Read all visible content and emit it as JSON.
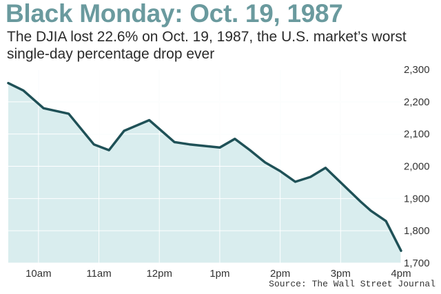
{
  "header": {
    "title": "Black Monday: Oct. 19, 1987",
    "subtitle": "The DJIA lost 22.6% on Oct. 19, 1987, the U.S. market’s worst single-day percentage drop ever"
  },
  "footer": {
    "source": "Source: The Wall Street Journal"
  },
  "colors": {
    "title": "#6a9a9e",
    "line": "#1f5157",
    "fill": "#d9edee",
    "grid": "#ffffff",
    "background": "#ffffff"
  },
  "chart_data": {
    "type": "area",
    "title": "Black Monday: Oct. 19, 1987",
    "subtitle": "The DJIA lost 22.6% on Oct. 19, 1987, the U.S. market’s worst single-day percentage drop ever",
    "xlabel": "",
    "ylabel": "",
    "x_ticks": [
      "10am",
      "11am",
      "12pm",
      "1pm",
      "2pm",
      "3pm",
      "4pm"
    ],
    "y_ticks": [
      "1,700",
      "1,800",
      "1,900",
      "2,000",
      "2,100",
      "2,200",
      "2,300"
    ],
    "y_tick_values": [
      1700,
      1800,
      1900,
      2000,
      2100,
      2200,
      2300
    ],
    "ylim": [
      1700,
      2300
    ],
    "xlim": [
      "9:30am",
      "4:00pm"
    ],
    "grid": true,
    "legend": "none",
    "series": [
      {
        "x": [
          "9:30am",
          "9:45am",
          "10:05am",
          "10:30am",
          "10:55am",
          "11:10am",
          "11:25am",
          "11:50am",
          "12:15pm",
          "12:30pm",
          "1:00pm",
          "1:15pm",
          "1:30pm",
          "1:45pm",
          "2:00pm",
          "2:15pm",
          "2:30pm",
          "2:45pm",
          "3:00pm",
          "3:20pm",
          "3:30pm",
          "3:45pm",
          "4:00pm"
        ],
        "values": [
          2258,
          2235,
          2180,
          2163,
          2068,
          2050,
          2110,
          2143,
          2075,
          2068,
          2058,
          2085,
          2050,
          2012,
          1985,
          1952,
          1967,
          1995,
          1950,
          1890,
          1862,
          1830,
          1738
        ]
      }
    ]
  }
}
